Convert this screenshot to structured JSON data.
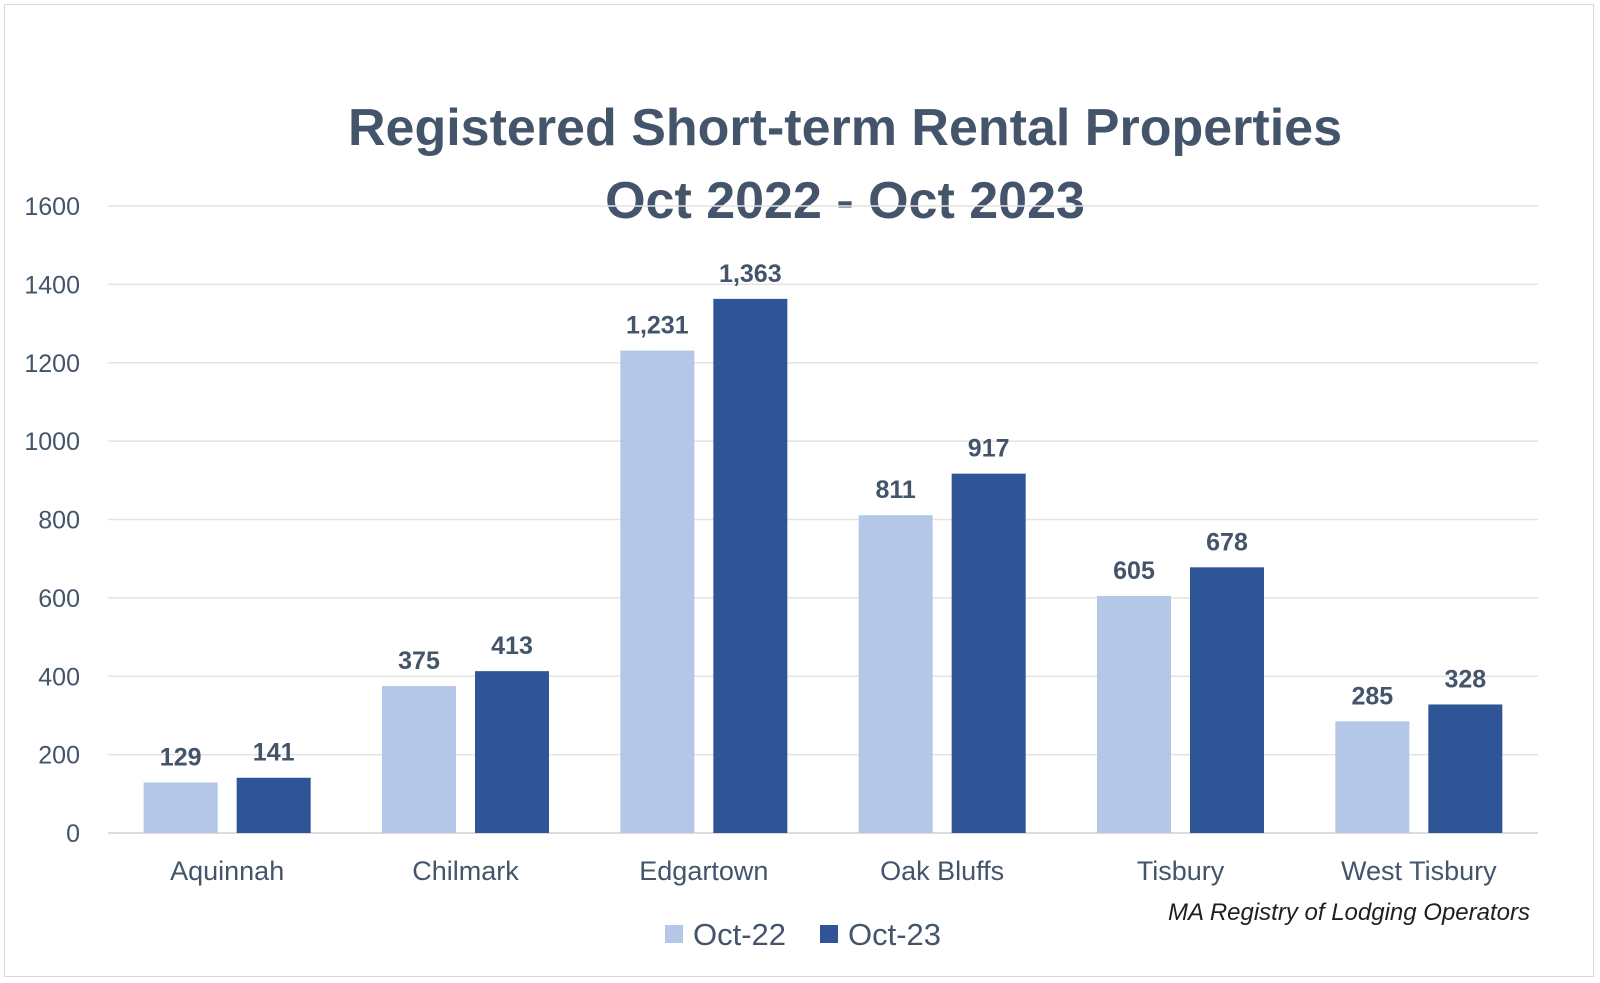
{
  "chart_data": {
    "type": "bar",
    "title": [
      "Registered Short-term Rental Properties",
      "Oct 2022 - Oct 2023"
    ],
    "categories": [
      "Aquinnah",
      "Chilmark",
      "Edgartown",
      "Oak Bluffs",
      "Tisbury",
      "West Tisbury"
    ],
    "series": [
      {
        "name": "Oct-22",
        "color": "#b4c7e7",
        "values": [
          129,
          375,
          1231,
          811,
          605,
          285
        ],
        "labels": [
          "129",
          "375",
          "1,231",
          "811",
          "605",
          "285"
        ]
      },
      {
        "name": "Oct-23",
        "color": "#2f5597",
        "values": [
          141,
          413,
          1363,
          917,
          678,
          328
        ],
        "labels": [
          "141",
          "413",
          "1,363",
          "917",
          "678",
          "328"
        ]
      }
    ],
    "ylim": [
      0,
      1600
    ],
    "yticks": [
      0,
      200,
      400,
      600,
      800,
      1000,
      1200,
      1400,
      1600
    ],
    "xlabel": "",
    "ylabel": "",
    "grid": true,
    "legend_position": "bottom",
    "source_note": "MA Registry of Lodging Operators"
  }
}
